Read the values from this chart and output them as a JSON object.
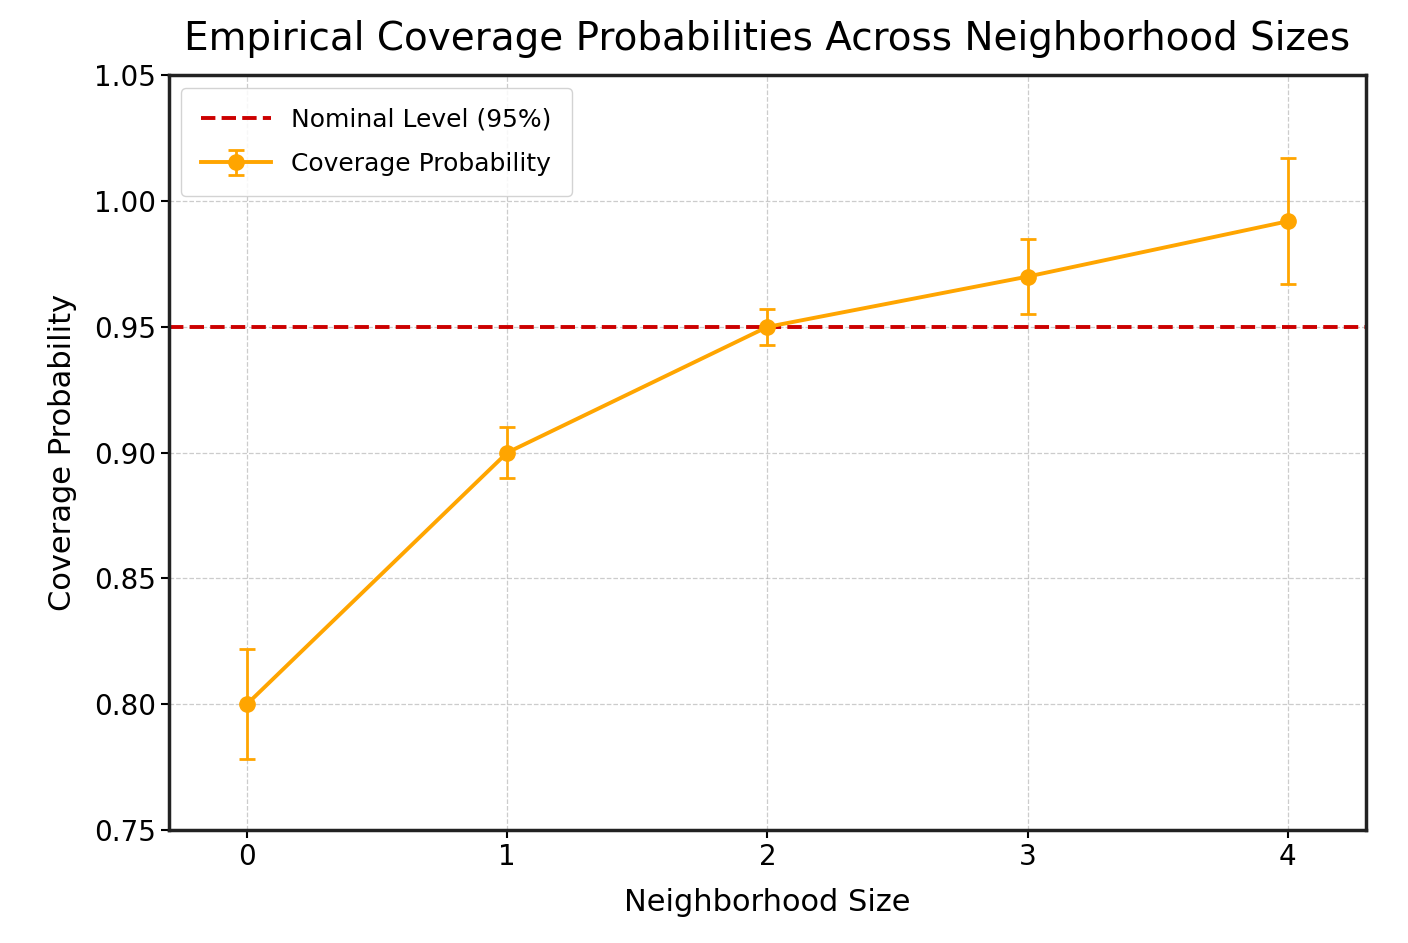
{
  "title": "Empirical Coverage Probabilities Across Neighborhood Sizes",
  "xlabel": "Neighborhood Size",
  "ylabel": "Coverage Probability",
  "x": [
    0,
    1,
    2,
    3,
    4
  ],
  "y": [
    0.8,
    0.9,
    0.95,
    0.97,
    0.992
  ],
  "yerr": [
    0.022,
    0.01,
    0.007,
    0.015,
    0.025
  ],
  "nominal_level": 0.95,
  "nominal_label": "Nominal Level (95%)",
  "line_label": "Coverage Probability",
  "line_color": "#FFA500",
  "nominal_color": "#CC0000",
  "ylim": [
    0.75,
    1.05
  ],
  "xlim": [
    -0.3,
    4.3
  ],
  "title_fontsize": 28,
  "label_fontsize": 22,
  "tick_fontsize": 20,
  "legend_fontsize": 18,
  "background_color": "#ffffff",
  "grid_color": "#aaaaaa",
  "spine_color": "#222222",
  "spine_linewidth": 2.5
}
